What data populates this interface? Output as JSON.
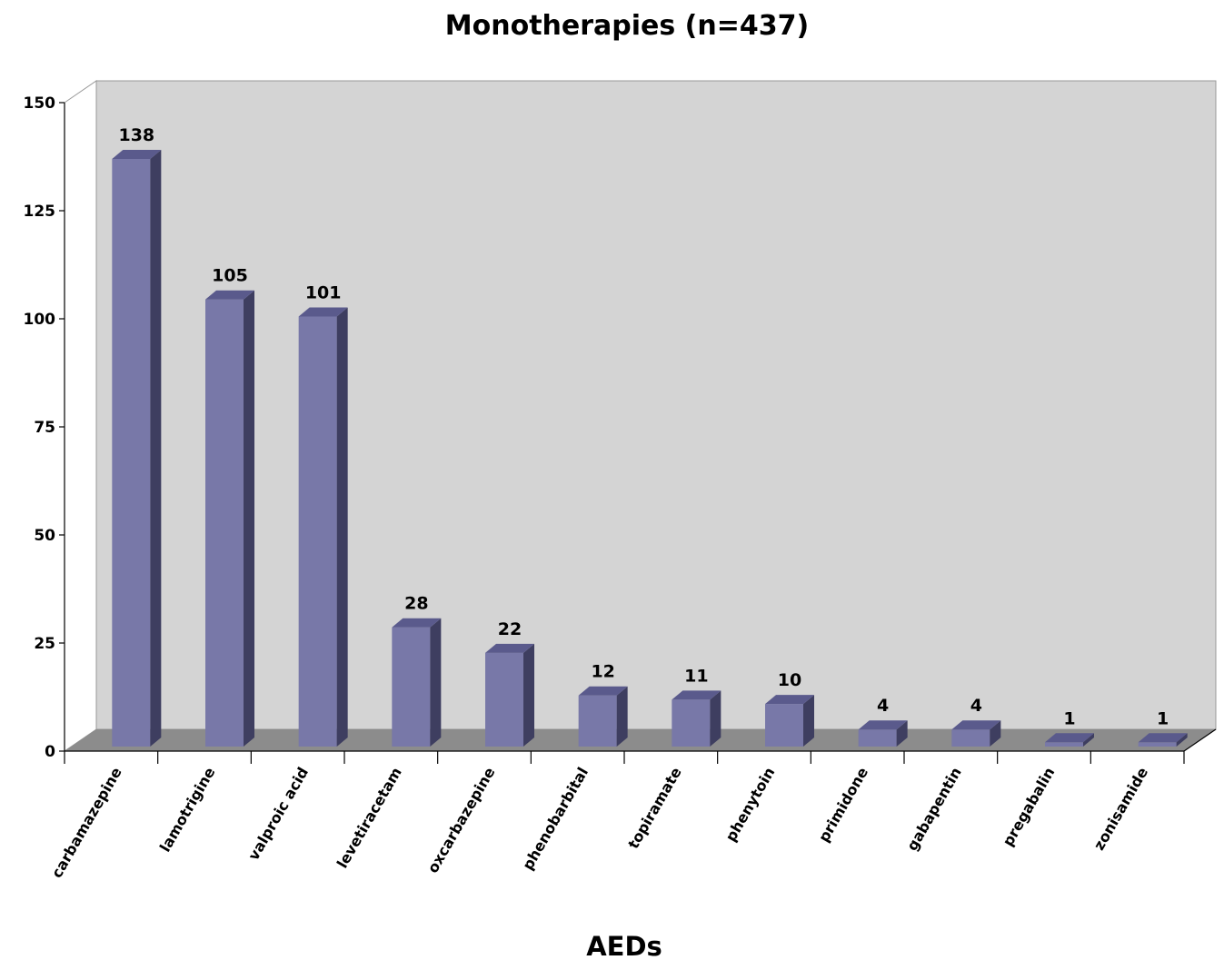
{
  "chart_data": {
    "type": "bar",
    "title": "Monotherapies (n=437)",
    "xlabel": "AEDs",
    "ylabel": "",
    "ylim": [
      0,
      150
    ],
    "yticks": [
      0,
      25,
      50,
      75,
      100,
      125,
      150
    ],
    "categories": [
      "carbamazepine",
      "lamotrigine",
      "valproic acid",
      "levetiracetam",
      "oxcarbazepine",
      "phenobarbital",
      "topiramate",
      "phenytoin",
      "primidone",
      "gabapentin",
      "pregabalin",
      "zonisamide"
    ],
    "values": [
      138,
      105,
      101,
      28,
      22,
      12,
      11,
      10,
      4,
      4,
      1,
      1
    ],
    "data_labels": [
      "138",
      "105",
      "101",
      "28",
      "22",
      "12",
      "11",
      "10",
      "4",
      "4",
      "1",
      "1"
    ],
    "legend": "none",
    "grid": false,
    "colors": {
      "bar_front": "#7878a8",
      "bar_top": "#5a5a8c",
      "bar_side": "#3e3e60",
      "back_wall": "#d4d4d4",
      "floor": "#8c8c8c"
    }
  }
}
